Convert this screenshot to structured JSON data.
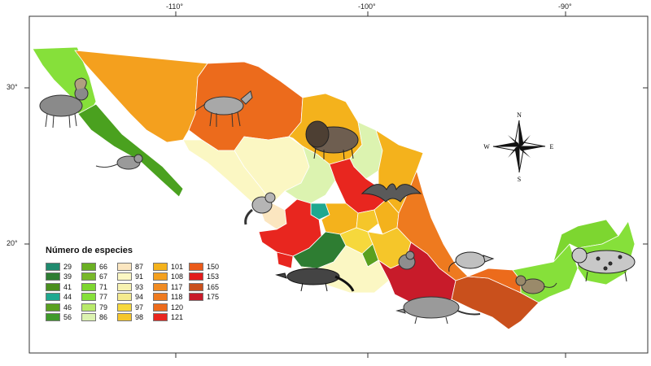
{
  "axes": {
    "top_ticks": [
      "-110°",
      "-100°",
      "-90°"
    ],
    "left_ticks": [
      "30°",
      "20°"
    ]
  },
  "compass": {
    "n": "N",
    "s": "S",
    "e": "E",
    "w": "W"
  },
  "legend": {
    "title": "Número de especies",
    "columns": [
      [
        {
          "value": "29",
          "color": "#1f8a6e"
        },
        {
          "value": "39",
          "color": "#2e7d32"
        },
        {
          "value": "41",
          "color": "#4b8f1e"
        },
        {
          "value": "44",
          "color": "#1fa890"
        },
        {
          "value": "46",
          "color": "#5aa01f"
        },
        {
          "value": "56",
          "color": "#3f9a2a"
        }
      ],
      [
        {
          "value": "66",
          "color": "#6ab023"
        },
        {
          "value": "67",
          "color": "#78b82a"
        },
        {
          "value": "71",
          "color": "#7dd630"
        },
        {
          "value": "77",
          "color": "#86e03a"
        },
        {
          "value": "79",
          "color": "#b9ea6a"
        },
        {
          "value": "86",
          "color": "#dcf3b0"
        }
      ],
      [
        {
          "value": "87",
          "color": "#fbe6c0"
        },
        {
          "value": "91",
          "color": "#fbf7c3"
        },
        {
          "value": "93",
          "color": "#f7f2b0"
        },
        {
          "value": "94",
          "color": "#f4ea8e"
        },
        {
          "value": "97",
          "color": "#f6d83c"
        },
        {
          "value": "98",
          "color": "#f5c62a"
        }
      ],
      [
        {
          "value": "101",
          "color": "#f4b21c"
        },
        {
          "value": "108",
          "color": "#f4a01e"
        },
        {
          "value": "117",
          "color": "#f08b22"
        },
        {
          "value": "118",
          "color": "#ee7a1f"
        },
        {
          "value": "120",
          "color": "#ec6b1c"
        },
        {
          "value": "121",
          "color": "#e8261f"
        }
      ],
      [
        {
          "value": "150",
          "color": "#ea5a1a"
        },
        {
          "value": "153",
          "color": "#e21c1c"
        },
        {
          "value": "165",
          "color": "#c9501c"
        },
        {
          "value": "175",
          "color": "#c81b2a"
        }
      ]
    ]
  },
  "icons": [
    "bighorn-sheep-icon",
    "coyote-icon",
    "kangaroo-rat-icon",
    "bison-icon",
    "bat-icon",
    "ringtail-icon",
    "anteater-icon",
    "rabbit-icon",
    "armadillo-icon",
    "opossum-icon",
    "monkey-icon",
    "jaguar-icon",
    "compass-rose-icon"
  ]
}
